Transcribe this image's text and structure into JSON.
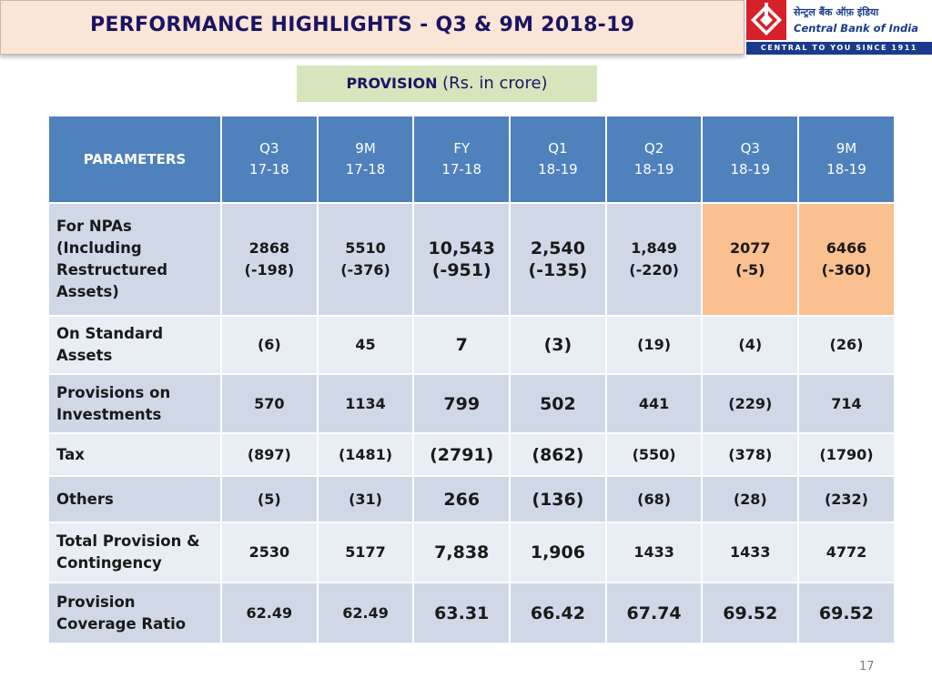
{
  "header": {
    "title": "PERFORMANCE HIGHLIGHTS - Q3 & 9M 2018-19",
    "subtitle_main": "PROVISION",
    "subtitle_unit": "(Rs. in crore)"
  },
  "logo": {
    "hindi_name": "सेन्ट्रल बैंक ऑफ़ इंडिया",
    "english_name": "Central Bank of India",
    "tagline": "CENTRAL TO YOU SINCE 1911",
    "brand_red": "#d6202a",
    "brand_blue": "#1a3b8c"
  },
  "table": {
    "headers": [
      {
        "line1": "PARAMETERS",
        "line2": ""
      },
      {
        "line1": "Q3",
        "line2": "17-18"
      },
      {
        "line1": "9M",
        "line2": "17-18"
      },
      {
        "line1": "FY",
        "line2": "17-18"
      },
      {
        "line1": "Q1",
        "line2": "18-19"
      },
      {
        "line1": "Q2",
        "line2": "18-19"
      },
      {
        "line1": "Q3",
        "line2": "18-19"
      },
      {
        "line1": "9M",
        "line2": "18-19"
      }
    ],
    "rows": [
      {
        "param_lines": [
          "For  NPAs",
          "(Including",
          "Restructured",
          "Assets)"
        ],
        "values": [
          {
            "line1": "2868",
            "line2": "(-198)"
          },
          {
            "line1": "5510",
            "line2": "(-376)"
          },
          {
            "line1": "10,543",
            "line2": "(-951)"
          },
          {
            "line1": "2,540",
            "line2": "(-135)"
          },
          {
            "line1": "1,849",
            "line2": "(-220)"
          },
          {
            "line1": "2077",
            "line2": "(-5)"
          },
          {
            "line1": "6466",
            "line2": "(-360)"
          }
        ]
      },
      {
        "param_lines": [
          "On Standard",
          "Assets"
        ],
        "values": [
          "(6)",
          "45",
          "7",
          "(3)",
          "(19)",
          "(4)",
          "(26)"
        ]
      },
      {
        "param_lines": [
          "Provisions on",
          "Investments"
        ],
        "values": [
          "570",
          "1134",
          "799",
          "502",
          "441",
          "(229)",
          "714"
        ]
      },
      {
        "param_lines": [
          "Tax"
        ],
        "values": [
          "(897)",
          "(1481)",
          "(2791)",
          "(862)",
          "(550)",
          "(378)",
          "(1790)"
        ]
      },
      {
        "param_lines": [
          "Others"
        ],
        "values": [
          "(5)",
          "(31)",
          "266",
          "(136)",
          "(68)",
          "(28)",
          "(232)"
        ]
      },
      {
        "param_lines": [
          "Total Provision &",
          "Contingency"
        ],
        "values": [
          "2530",
          "5177",
          "7,838",
          "1,906",
          "1433",
          "1433",
          "4772"
        ]
      },
      {
        "param_lines": [
          "Provision",
          "Coverage Ratio"
        ],
        "values": [
          "62.49",
          "62.49",
          "63.31",
          "66.42",
          "67.74",
          "69.52",
          "69.52"
        ]
      }
    ]
  },
  "colors": {
    "header_blue": "#4f81bd",
    "row_dark": "#d0d8e8",
    "row_light": "#e9edf4",
    "highlight_orange": "#fac090",
    "title_bg": "#fbe5d6",
    "subtitle_bg": "#d8e4bc",
    "title_text": "#1b1464"
  },
  "footer": {
    "page_number": "17"
  }
}
